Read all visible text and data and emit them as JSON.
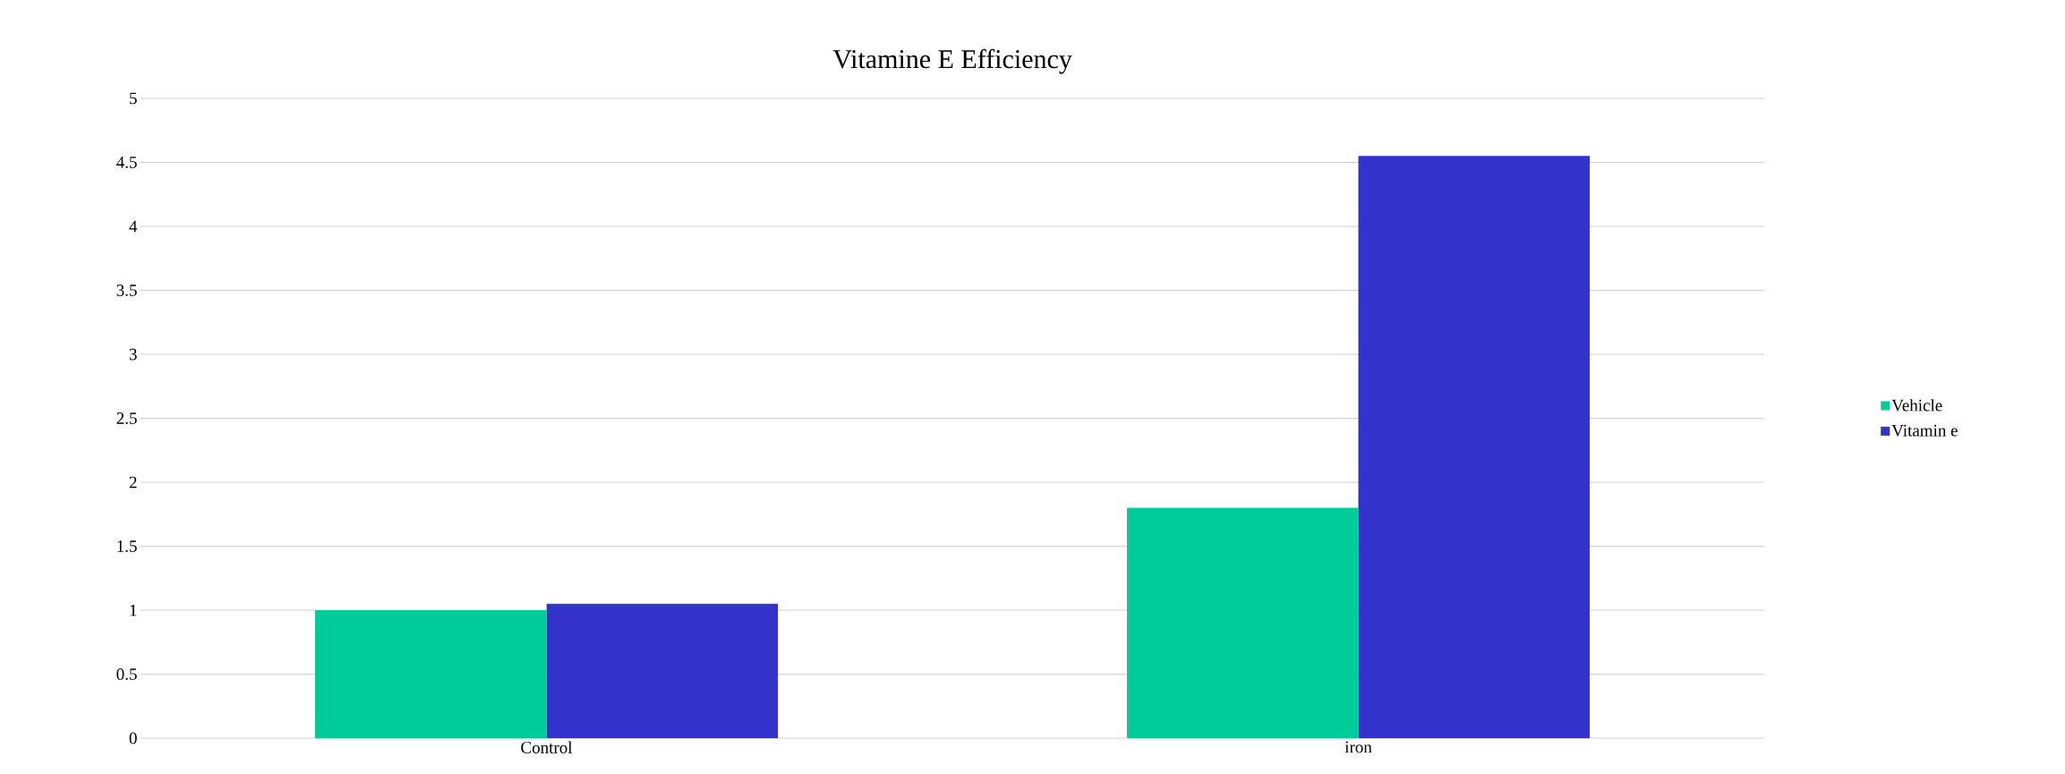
{
  "chart_data": {
    "type": "bar",
    "title": "Vitamine E Efficiency",
    "categories": [
      "Control",
      "iron"
    ],
    "series": [
      {
        "name": "Vehicle",
        "color": "#00cc99",
        "values": [
          1.0,
          1.8
        ]
      },
      {
        "name": "Vitamin e",
        "color": "#3333cc",
        "values": [
          1.05,
          4.55
        ]
      }
    ],
    "ylim": [
      0,
      5
    ],
    "yticks": [
      0,
      0.5,
      1,
      1.5,
      2,
      2.5,
      3,
      3.5,
      4,
      4.5,
      5
    ],
    "grid": "y",
    "legend": "right"
  }
}
